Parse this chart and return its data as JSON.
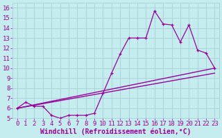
{
  "title": "",
  "xlabel": "Windchill (Refroidissement éolien,°C)",
  "xlim": [
    -0.5,
    23.5
  ],
  "ylim": [
    5,
    16.5
  ],
  "xticks": [
    0,
    1,
    2,
    3,
    4,
    5,
    6,
    7,
    8,
    9,
    10,
    11,
    12,
    13,
    14,
    15,
    16,
    17,
    18,
    19,
    20,
    21,
    22,
    23
  ],
  "yticks": [
    5,
    6,
    7,
    8,
    9,
    10,
    11,
    12,
    13,
    14,
    15,
    16
  ],
  "bg_color": "#c5ecee",
  "line_color": "#990099",
  "grid_color": "#aad4d8",
  "line1_x": [
    0,
    1,
    2,
    3,
    4,
    5,
    6,
    7,
    8,
    9,
    10,
    11,
    12,
    13,
    14,
    15,
    16,
    17,
    18,
    19,
    20,
    21,
    22,
    23
  ],
  "line1_y": [
    6.0,
    6.6,
    6.2,
    6.2,
    5.3,
    5.0,
    5.3,
    5.3,
    5.3,
    5.5,
    7.5,
    9.5,
    11.4,
    13.0,
    13.0,
    13.0,
    15.7,
    14.4,
    14.3,
    12.6,
    14.3,
    11.8,
    11.5,
    10.0
  ],
  "line2_x": [
    0,
    23
  ],
  "line2_y": [
    6.0,
    10.0
  ],
  "line3_x": [
    0,
    23
  ],
  "line3_y": [
    6.0,
    9.5
  ],
  "font_family": "monospace",
  "tick_fontsize": 6.5,
  "xlabel_fontsize": 7
}
